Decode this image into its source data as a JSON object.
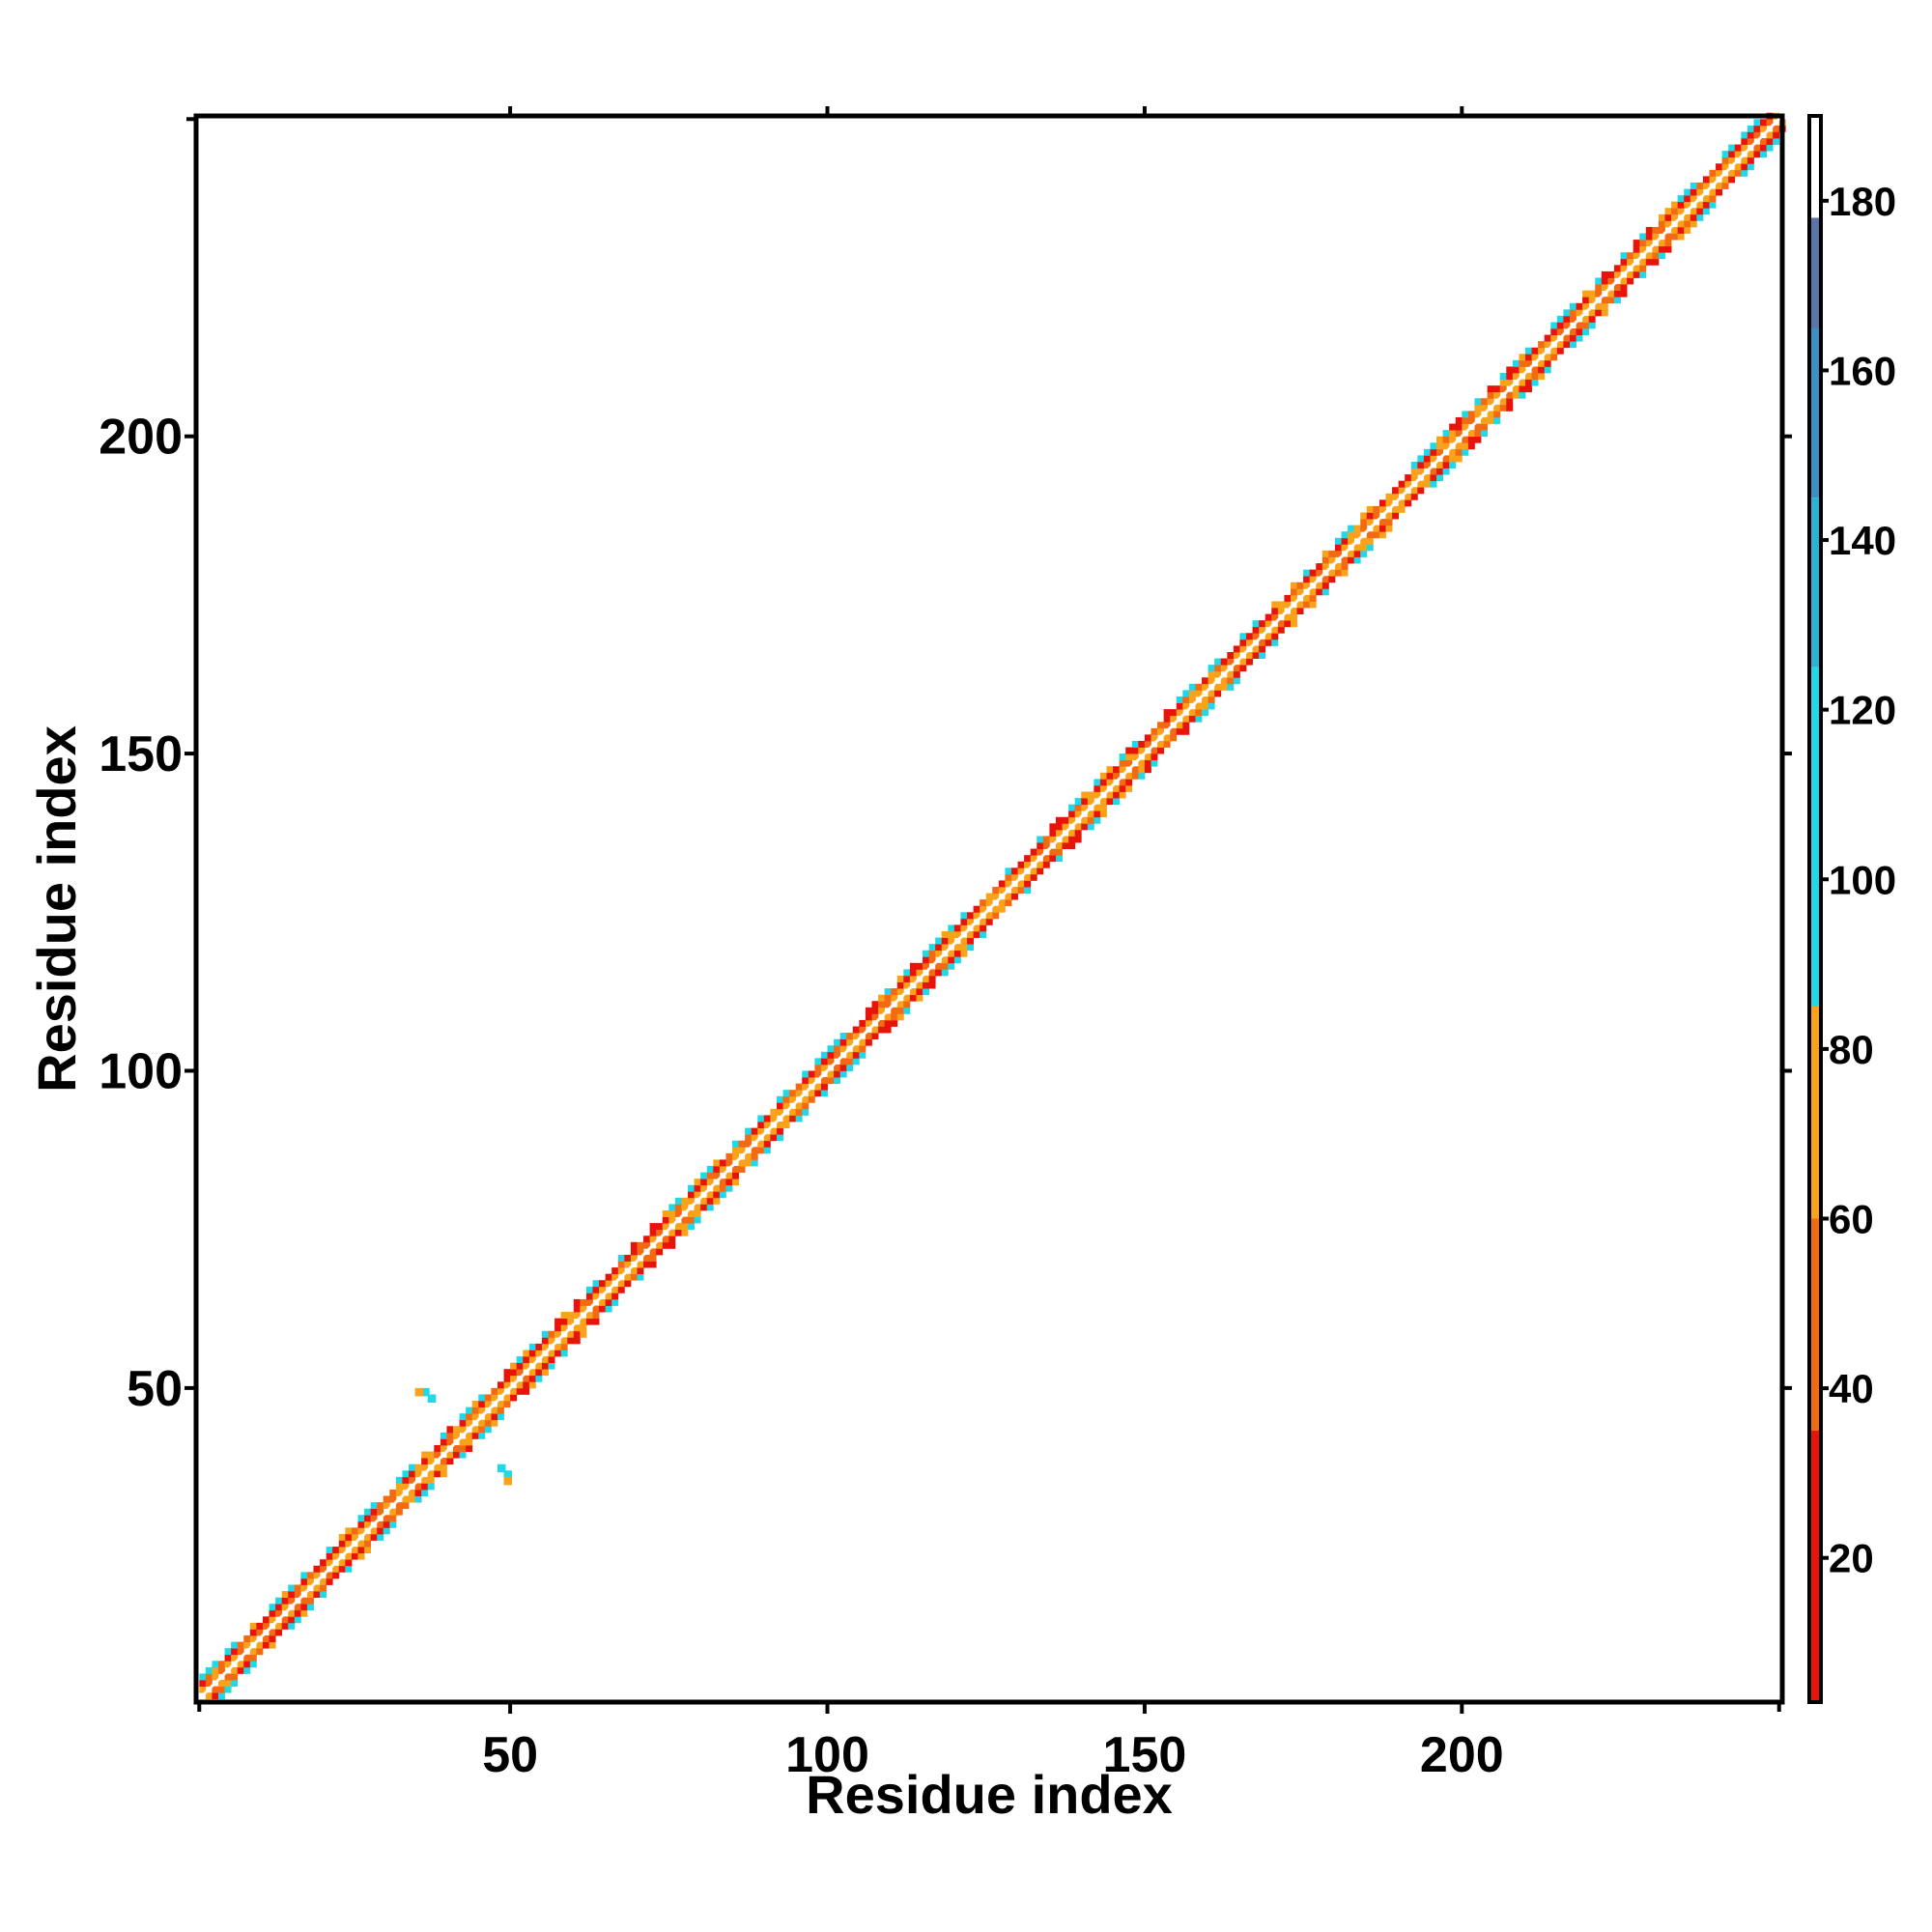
{
  "chart_data": {
    "type": "heatmap",
    "title": "",
    "xlabel": "Residue index",
    "ylabel": "Residue index",
    "n_residues": 250,
    "xlim": [
      1,
      250
    ],
    "ylim": [
      1,
      250
    ],
    "x_ticks": [
      50,
      100,
      150,
      200
    ],
    "y_ticks": [
      50,
      100,
      150,
      200
    ],
    "x_tick_labels": [
      "50",
      "100",
      "150",
      "200"
    ],
    "y_tick_labels": [
      "50",
      "100",
      "150",
      "200"
    ],
    "colorbar": {
      "range": [
        3,
        190
      ],
      "ticks": [
        20,
        40,
        60,
        80,
        100,
        120,
        140,
        160,
        180
      ],
      "tick_labels": [
        "20",
        "40",
        "60",
        "80",
        "100",
        "120",
        "140",
        "160",
        "180"
      ],
      "stops": [
        {
          "from": 3,
          "to": 35,
          "color": "#e8140b"
        },
        {
          "from": 35,
          "to": 60,
          "color": "#f36a12"
        },
        {
          "from": 60,
          "to": 85,
          "color": "#f9a21a"
        },
        {
          "from": 85,
          "to": 125,
          "color": "#22d8e8"
        },
        {
          "from": 125,
          "to": 145,
          "color": "#2ab2d2"
        },
        {
          "from": 145,
          "to": 165,
          "color": "#3a90c2"
        },
        {
          "from": 165,
          "to": 178,
          "color": "#5a74a6"
        },
        {
          "from": 178,
          "to": 190,
          "color": "#ffffff"
        }
      ]
    },
    "diagonal_band": {
      "description_values": "distances along diagonal offsets",
      "offset_1": "orange",
      "offset_2": "red",
      "offset_3": "cyan"
    },
    "off_diagonal_contacts": [
      {
        "i": 36,
        "j": 49,
        "value": 100
      },
      {
        "i": 37,
        "j": 48,
        "value": 100
      },
      {
        "i": 35,
        "j": 49,
        "value": 70
      },
      {
        "i": 48,
        "j": 37,
        "value": 100
      },
      {
        "i": 49,
        "j": 36,
        "value": 100
      },
      {
        "i": 49,
        "j": 35,
        "value": 70
      }
    ],
    "colors": {
      "red": "#e8140b",
      "orange": "#f9a21a",
      "dark_orange": "#f36a12",
      "cyan": "#22d8e8",
      "background": "#ffffff"
    }
  }
}
